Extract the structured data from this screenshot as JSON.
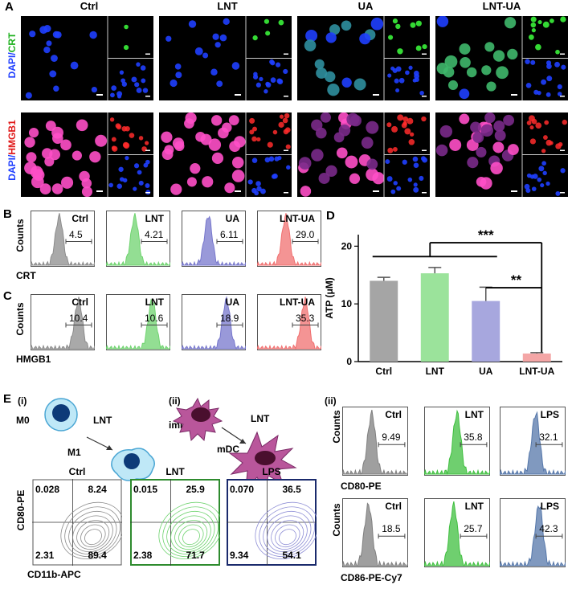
{
  "panelA": {
    "label": "A",
    "groups": [
      "Ctrl",
      "LNT",
      "UA",
      "LNT-UA"
    ],
    "row1_label_prefix": "DAPI/",
    "row1_label_marker": "CRT",
    "row2_label_prefix": "DAPI/",
    "row2_label_marker": "HMGB1",
    "colors": {
      "dapi": "#1f3fff",
      "crt": "#3dff3d",
      "hmgb1": "#ff2b2b",
      "merge_pink": "#ff4fc8"
    }
  },
  "panelB": {
    "label": "B",
    "y_axis": "Counts",
    "x_axis": "CRT",
    "plots": [
      {
        "name": "Ctrl",
        "value": "4.5",
        "color": "#8c8c8c"
      },
      {
        "name": "LNT",
        "value": "4.21",
        "color": "#6fd36f"
      },
      {
        "name": "UA",
        "value": "6.11",
        "color": "#7777cc"
      },
      {
        "name": "LNT-UA",
        "value": "29.0",
        "color": "#f07070"
      }
    ]
  },
  "panelC": {
    "label": "C",
    "y_axis": "Counts",
    "x_axis": "HMGB1",
    "plots": [
      {
        "name": "Ctrl",
        "value": "10.4",
        "color": "#8c8c8c"
      },
      {
        "name": "LNT",
        "value": "10.6",
        "color": "#6fd36f"
      },
      {
        "name": "UA",
        "value": "18.9",
        "color": "#7777cc"
      },
      {
        "name": "LNT-UA",
        "value": "35.3",
        "color": "#f07070"
      }
    ]
  },
  "chart_data": {
    "type": "bar",
    "panel_label": "D",
    "categories": [
      "Ctrl",
      "LNT",
      "UA",
      "LNT-UA"
    ],
    "values": [
      14.0,
      15.3,
      10.5,
      1.4
    ],
    "errors": [
      0.6,
      1.0,
      2.4,
      0.15
    ],
    "colors": [
      "#a5a5a5",
      "#9be39b",
      "#a7a7de",
      "#f4a6a6"
    ],
    "ylabel": "ATP (μM)",
    "ylim": [
      0,
      22
    ],
    "yticks": [
      0,
      10,
      20
    ],
    "annotations": [
      "***",
      "**"
    ]
  },
  "panelE": {
    "label": "E",
    "sub_i": "(i)",
    "sub_ii": "(ii)",
    "m0": "M0",
    "m1": "M1",
    "lnt_arrow": "LNT",
    "imdc": "imDC",
    "mdc": "mDC",
    "contour": {
      "y_axis": "CD80-PE",
      "x_axis": "CD11b-APC",
      "plots": [
        {
          "name": "Ctrl",
          "q": [
            "0.028",
            "8.24",
            "2.31",
            "89.4"
          ],
          "border": "#ffffff",
          "color": "#8c8c8c"
        },
        {
          "name": "LNT",
          "q": [
            "0.015",
            "25.9",
            "2.38",
            "71.7"
          ],
          "border": "#2e8b2e",
          "color": "#6fd36f"
        },
        {
          "name": "LPS",
          "q": [
            "0.070",
            "36.5",
            "9.34",
            "54.1"
          ],
          "border": "#1a2a6c",
          "color": "#8f8fd6"
        }
      ]
    },
    "cd80": {
      "y_axis": "Counts",
      "x_axis": "CD80-PE",
      "plots": [
        {
          "name": "Ctrl",
          "value": "9.49",
          "color": "#7f7f7f"
        },
        {
          "name": "LNT",
          "value": "35.8",
          "color": "#3fbf3f"
        },
        {
          "name": "LPS",
          "value": "32.1",
          "color": "#5577aa"
        }
      ]
    },
    "cd86": {
      "y_axis": "Counts",
      "x_axis": "CD86-PE-Cy7",
      "plots": [
        {
          "name": "Ctrl",
          "value": "18.5",
          "color": "#7f7f7f"
        },
        {
          "name": "LNT",
          "value": "25.7",
          "color": "#3fbf3f"
        },
        {
          "name": "LPS",
          "value": "42.3",
          "color": "#5577aa"
        }
      ]
    }
  }
}
